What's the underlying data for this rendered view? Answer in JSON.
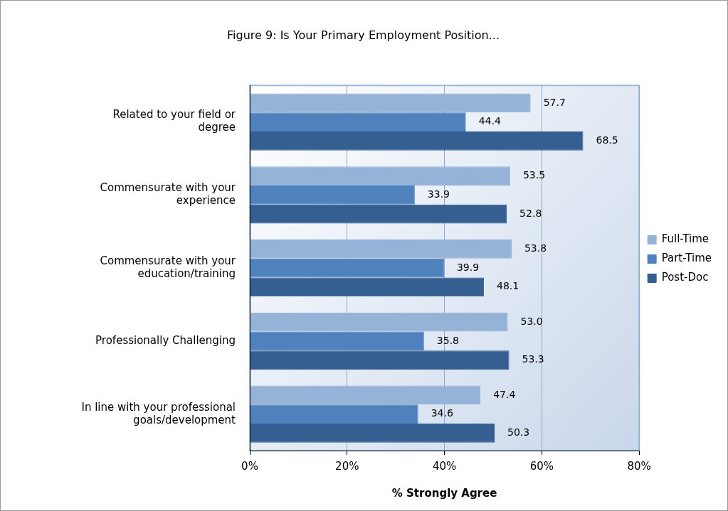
{
  "chart_data": {
    "type": "bar",
    "orientation": "horizontal",
    "title": "Figure 9: Is Your Primary Employment Position...",
    "xlabel": "% Strongly Agree",
    "categories": [
      "Related to your field or degree",
      "Commensurate with your experience",
      "Commensurate with your education/training",
      "Professionally Challenging",
      "In line with your professional goals/development"
    ],
    "series": [
      {
        "name": "Full-Time",
        "color": "#95b3d7",
        "values": [
          57.7,
          53.5,
          53.8,
          53.0,
          47.4
        ],
        "value_labels": [
          "57.7",
          "53.5",
          "53.8",
          "53.0",
          "47.4"
        ]
      },
      {
        "name": "Part-Time",
        "color": "#4f81bd",
        "values": [
          44.4,
          33.9,
          39.9,
          35.8,
          34.6
        ],
        "value_labels": [
          "44.4",
          "33.9",
          "39.9",
          "35.8",
          "34.6"
        ]
      },
      {
        "name": "Post-Doc",
        "color": "#365f91",
        "values": [
          68.5,
          52.8,
          48.1,
          53.3,
          50.3
        ],
        "value_labels": [
          "68.5",
          "52.8",
          "48.1",
          "53.3",
          "50.3"
        ]
      }
    ],
    "xlim": [
      0,
      80
    ],
    "xticks": [
      {
        "value": 0,
        "label": "0%"
      },
      {
        "value": 20,
        "label": "20%"
      },
      {
        "value": 40,
        "label": "40%"
      },
      {
        "value": 60,
        "label": "60%"
      },
      {
        "value": 80,
        "label": "80%"
      }
    ],
    "grid": "x",
    "legend": "right"
  }
}
